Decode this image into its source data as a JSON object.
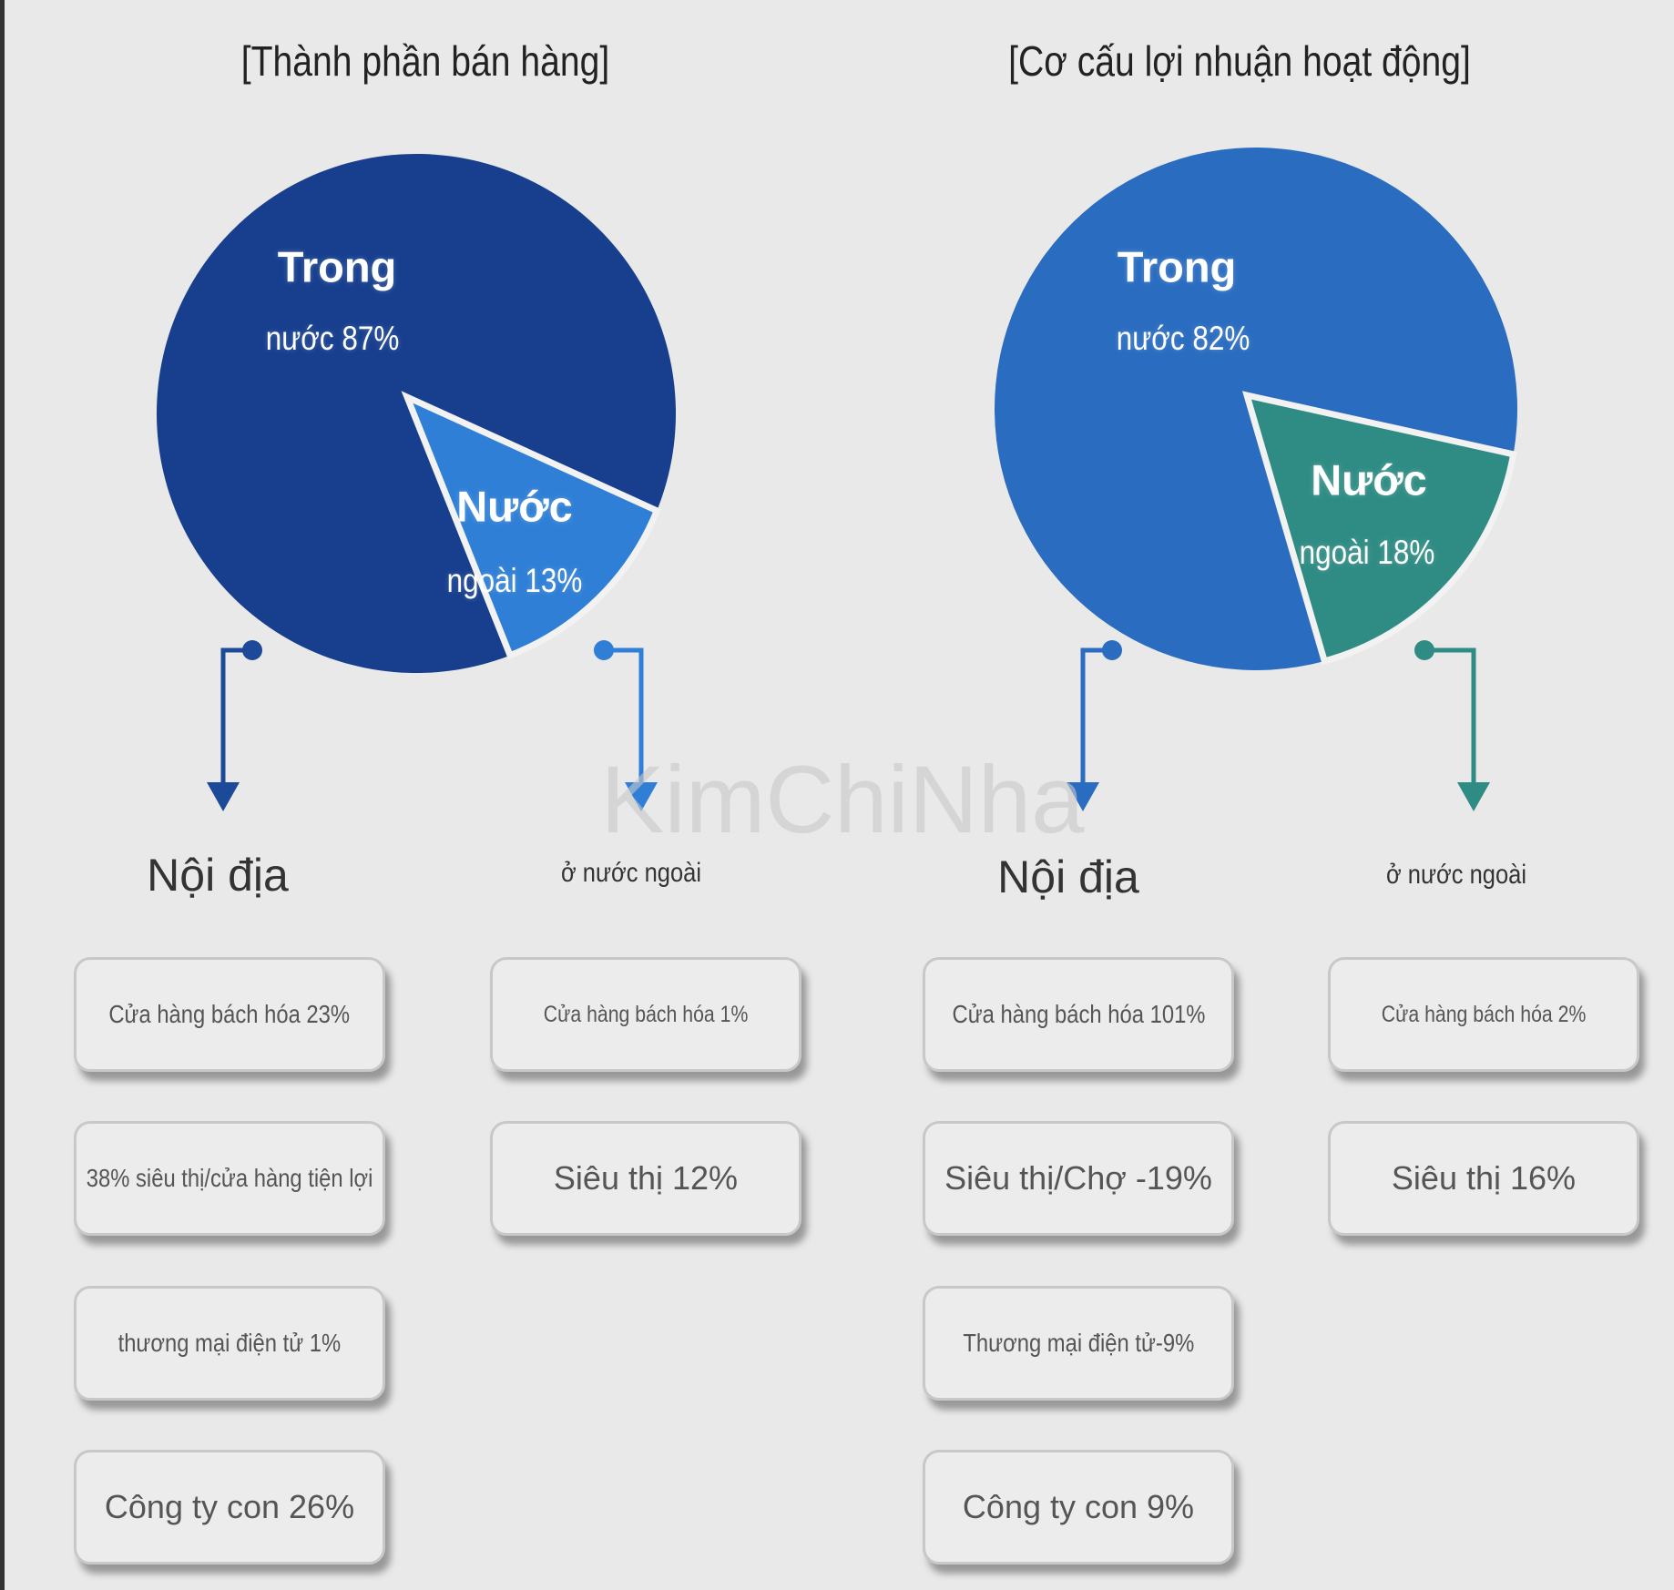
{
  "watermark": "KimChiNha",
  "chart_data": [
    {
      "type": "pie",
      "title": "[Thành phần bán hàng]",
      "slices": [
        {
          "name_line1": "Trong",
          "name_line2": "nước 87%",
          "value": 87,
          "color": "#173f8e"
        },
        {
          "name_line1": "Nước",
          "name_line2": "ngoài 13%",
          "value": 13,
          "color": "#2f7fd6"
        }
      ],
      "breakdown": {
        "domestic": {
          "label": "Nội địa",
          "arrow_color": "#1d4a98",
          "items": [
            "Cửa hàng bách hóa 23%",
            "38% siêu thị/cửa hàng tiện lợi",
            "thương mại điện tử 1%",
            "Công ty con 26%"
          ]
        },
        "overseas": {
          "label": "ở nước ngoài",
          "arrow_color": "#2f7fd6",
          "items": [
            "Cửa hàng bách hóa 1%",
            "Siêu thị 12%"
          ]
        }
      }
    },
    {
      "type": "pie",
      "title": "[Cơ cấu lợi nhuận hoạt động]",
      "slices": [
        {
          "name_line1": "Trong",
          "name_line2": "nước 82%",
          "value": 82,
          "color": "#2a6cc0"
        },
        {
          "name_line1": "Nước",
          "name_line2": "ngoài 18%",
          "value": 18,
          "color": "#2f8c84"
        }
      ],
      "breakdown": {
        "domestic": {
          "label": "Nội địa",
          "arrow_color": "#2a6cc0",
          "items": [
            "Cửa hàng bách hóa 101%",
            "Siêu thị/Chợ -19%",
            "Thương mại điện tử-9%",
            "Công ty con 9%"
          ]
        },
        "overseas": {
          "label": "ở nước ngoài",
          "arrow_color": "#2f8c84",
          "items": [
            "Cửa hàng bách hóa 2%",
            "Siêu thị 16%"
          ]
        }
      }
    }
  ]
}
